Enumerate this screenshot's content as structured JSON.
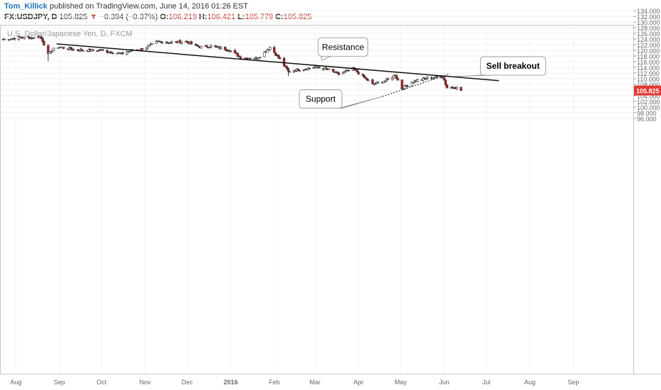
{
  "header": {
    "author": "Tom_Killick",
    "published": "published on TradingView.com, June 14, 2016 01:26 EST",
    "symbol": "FX:USDJPY, D",
    "last": "105.825",
    "down_arrow": "▼",
    "change": "−0.394 (−0.37%)",
    "o_label": "O:",
    "o_value": "106.219",
    "h_label": "H:",
    "h_value": "106.421",
    "l_label": "L:",
    "l_value": "105.779",
    "c_label": "C:",
    "c_value": "105.825"
  },
  "chart_data": {
    "type": "candlestick",
    "title": "U.S. Dollar/Japanese Yen, D, FXCM",
    "ylim": [
      94,
      135
    ],
    "y_ticks": [
      "96.000",
      "98.000",
      "100.000",
      "102.000",
      "104.000",
      "106.000",
      "108.000",
      "110.000",
      "112.000",
      "114.000",
      "116.000",
      "118.000",
      "120.000",
      "122.000",
      "124.000",
      "126.000",
      "128.000",
      "130.000",
      "132.000",
      "134.000"
    ],
    "x_labels": [
      "Aug",
      "Sep",
      "Oct",
      "Nov",
      "Dec",
      "2016",
      "Feb",
      "Mar",
      "Apr",
      "May",
      "Jun",
      "Jul",
      "Aug",
      "Sep"
    ],
    "last_price_label": "105.825",
    "colors": {
      "up": "#ffffff",
      "down": "#b71c1c",
      "outline": "#333333",
      "price_tag": "#e53935"
    },
    "waypoints": [
      {
        "date": "2015-07-23",
        "close": 123.9
      },
      {
        "date": "2015-07-30",
        "close": 124.2
      },
      {
        "date": "2015-08-05",
        "close": 124.6
      },
      {
        "date": "2015-08-12",
        "close": 124.4
      },
      {
        "date": "2015-08-18",
        "close": 124.9
      },
      {
        "date": "2015-08-20",
        "close": 123.5
      },
      {
        "date": "2015-08-24",
        "close": 118.5
      },
      {
        "date": "2015-08-26",
        "close": 119.8
      },
      {
        "date": "2015-08-31",
        "close": 121.2
      },
      {
        "date": "2015-09-10",
        "close": 120.4
      },
      {
        "date": "2015-09-20",
        "close": 120.0
      },
      {
        "date": "2015-10-01",
        "close": 120.0
      },
      {
        "date": "2015-10-15",
        "close": 118.8
      },
      {
        "date": "2015-10-22",
        "close": 119.9
      },
      {
        "date": "2015-10-31",
        "close": 120.6
      },
      {
        "date": "2015-11-10",
        "close": 123.1
      },
      {
        "date": "2015-11-20",
        "close": 122.8
      },
      {
        "date": "2015-11-30",
        "close": 123.1
      },
      {
        "date": "2015-12-10",
        "close": 121.2
      },
      {
        "date": "2015-12-18",
        "close": 121.5
      },
      {
        "date": "2015-12-31",
        "close": 120.2
      },
      {
        "date": "2016-01-08",
        "close": 117.5
      },
      {
        "date": "2016-01-20",
        "close": 117.2
      },
      {
        "date": "2016-01-29",
        "close": 121.1
      },
      {
        "date": "2016-02-05",
        "close": 116.9
      },
      {
        "date": "2016-02-11",
        "close": 112.5
      },
      {
        "date": "2016-02-18",
        "close": 113.2
      },
      {
        "date": "2016-03-01",
        "close": 114.0
      },
      {
        "date": "2016-03-10",
        "close": 113.3
      },
      {
        "date": "2016-03-18",
        "close": 111.5
      },
      {
        "date": "2016-03-28",
        "close": 113.5
      },
      {
        "date": "2016-04-05",
        "close": 110.5
      },
      {
        "date": "2016-04-11",
        "close": 108.0
      },
      {
        "date": "2016-04-21",
        "close": 109.4
      },
      {
        "date": "2016-04-27",
        "close": 111.4
      },
      {
        "date": "2016-05-02",
        "close": 106.5
      },
      {
        "date": "2016-05-10",
        "close": 109.0
      },
      {
        "date": "2016-05-20",
        "close": 110.2
      },
      {
        "date": "2016-05-31",
        "close": 110.8
      },
      {
        "date": "2016-06-03",
        "close": 106.8
      },
      {
        "date": "2016-06-09",
        "close": 107.0
      },
      {
        "date": "2016-06-13",
        "close": 105.825
      }
    ],
    "lines": [
      {
        "name": "resistance",
        "style": "solid",
        "from": {
          "date": "2015-08-30",
          "price": 122.3
        },
        "to": {
          "date": "2016-07-10",
          "price": 109.3
        }
      },
      {
        "name": "support",
        "style": "dotted",
        "from": {
          "date": "2016-04-18",
          "price": 103.7
        },
        "to": {
          "date": "2016-06-05",
          "price": 111.7
        }
      }
    ],
    "annotations": [
      {
        "text": "Resistance",
        "date": "2016-03-21",
        "price": 121.2
      },
      {
        "text": "Sell breakout",
        "date": "2016-07-20",
        "price": 114.5
      },
      {
        "text": "Support",
        "date": "2016-03-05",
        "price": 102.8
      }
    ]
  }
}
